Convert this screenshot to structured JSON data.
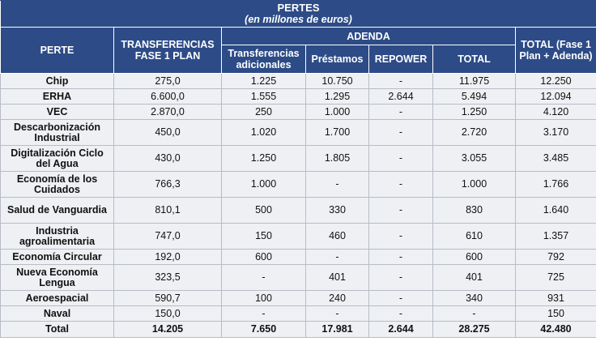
{
  "title": "PERTES",
  "subtitle": "(en millones de euros)",
  "headers": {
    "perte": "PERTE",
    "fase1": "TRANSFERENCIAS FASE 1 PLAN",
    "adenda": "ADENDA",
    "total_fase": "TOTAL (Fase 1 Plan + Adenda)",
    "transferencias_adicionales": "Transferencias adicionales",
    "prestamos": "Préstamos",
    "repower": "REPOWER",
    "total": "TOTAL"
  },
  "rows": [
    {
      "name": "Chip",
      "fase1": "275,0",
      "trans": "1.225",
      "prest": "10.750",
      "repower": "-",
      "total": "11.975",
      "grand": "12.250",
      "tall": false
    },
    {
      "name": "ERHA",
      "fase1": "6.600,0",
      "trans": "1.555",
      "prest": "1.295",
      "repower": "2.644",
      "total": "5.494",
      "grand": "12.094",
      "tall": false
    },
    {
      "name": "VEC",
      "fase1": "2.870,0",
      "trans": "250",
      "prest": "1.000",
      "repower": "-",
      "total": "1.250",
      "grand": "4.120",
      "tall": false
    },
    {
      "name": "Descarbonización Industrial",
      "fase1": "450,0",
      "trans": "1.020",
      "prest": "1.700",
      "repower": "-",
      "total": "2.720",
      "grand": "3.170",
      "tall": true
    },
    {
      "name": "Digitalización Ciclo del Agua",
      "fase1": "430,0",
      "trans": "1.250",
      "prest": "1.805",
      "repower": "-",
      "total": "3.055",
      "grand": "3.485",
      "tall": true
    },
    {
      "name": "Economía de los Cuidados",
      "fase1": "766,3",
      "trans": "1.000",
      "prest": "-",
      "repower": "-",
      "total": "1.000",
      "grand": "1.766",
      "tall": true
    },
    {
      "name": "Salud de Vanguardia",
      "fase1": "810,1",
      "trans": "500",
      "prest": "330",
      "repower": "-",
      "total": "830",
      "grand": "1.640",
      "tall": true
    },
    {
      "name": "Industria agroalimentaria",
      "fase1": "747,0",
      "trans": "150",
      "prest": "460",
      "repower": "-",
      "total": "610",
      "grand": "1.357",
      "tall": true
    },
    {
      "name": "Economía Circular",
      "fase1": "192,0",
      "trans": "600",
      "prest": "-",
      "repower": "-",
      "total": "600",
      "grand": "792",
      "tall": false
    },
    {
      "name": "Nueva Economía Lengua",
      "fase1": "323,5",
      "trans": "-",
      "prest": "401",
      "repower": "-",
      "total": "401",
      "grand": "725",
      "tall": true
    },
    {
      "name": "Aeroespacial",
      "fase1": "590,7",
      "trans": "100",
      "prest": "240",
      "repower": "-",
      "total": "340",
      "grand": "931",
      "tall": false
    },
    {
      "name": "Naval",
      "fase1": "150,0",
      "trans": "-",
      "prest": "-",
      "repower": "-",
      "total": "-",
      "grand": "150",
      "tall": false
    }
  ],
  "total_row": {
    "name": "Total",
    "fase1": "14.205",
    "trans": "7.650",
    "prest": "17.981",
    "repower": "2.644",
    "total": "28.275",
    "grand": "42.480"
  }
}
